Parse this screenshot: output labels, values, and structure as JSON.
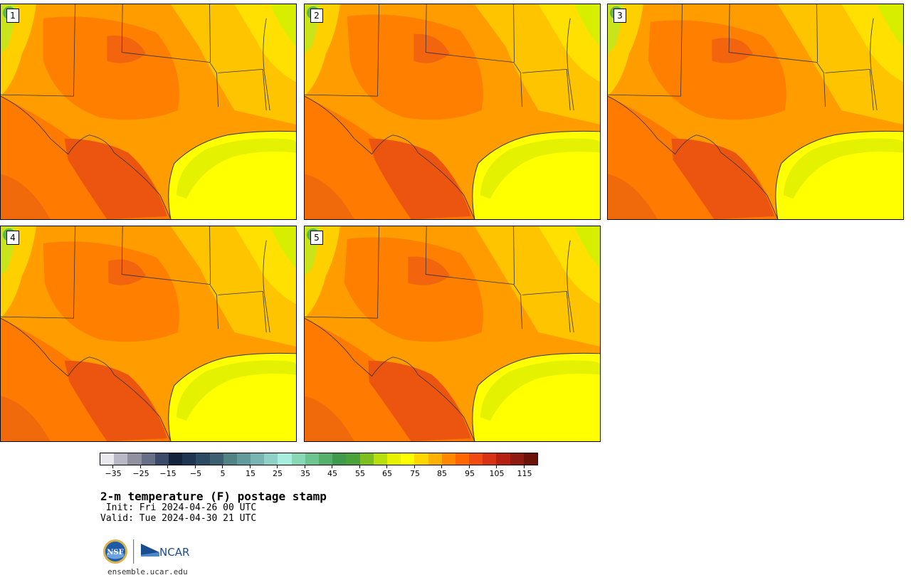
{
  "panels": [
    {
      "label": "1",
      "variant": 0
    },
    {
      "label": "2",
      "variant": 1
    },
    {
      "label": "3",
      "variant": 2
    },
    {
      "label": "4",
      "variant": 3
    },
    {
      "label": "5",
      "variant": 4
    }
  ],
  "colorbar": {
    "colors": [
      "#e8e8ee",
      "#b8b8c6",
      "#9090a0",
      "#666f85",
      "#3c4a6a",
      "#15233d",
      "#1f3552",
      "#2d4a63",
      "#3d5f72",
      "#518385",
      "#639a9c",
      "#78b5b3",
      "#8fd0c8",
      "#a8eedf",
      "#88d8b5",
      "#6cc58f",
      "#55b06c",
      "#3f9a4c",
      "#4aa33a",
      "#7cbf1f",
      "#b7df0e",
      "#e6f200",
      "#ffff00",
      "#ffd700",
      "#ffb000",
      "#ff8800",
      "#ff6600",
      "#f04a10",
      "#d73214",
      "#b52012",
      "#8f1a0f",
      "#6b1309"
    ],
    "tick_labels": [
      "−35",
      "−25",
      "−15",
      "−5",
      "5",
      "15",
      "25",
      "35",
      "45",
      "55",
      "65",
      "75",
      "85",
      "95",
      "105",
      "115"
    ],
    "range": [
      -40,
      120
    ]
  },
  "title": "2-m temperature (F) postage stamp",
  "init": " Init: Fri 2024-04-26 00 UTC",
  "valid": "Valid: Tue 2024-04-30 21 UTC",
  "logo": {
    "nsf": "NSF",
    "ncar": "NCAR"
  },
  "url": "ensemble.ucar.edu"
}
